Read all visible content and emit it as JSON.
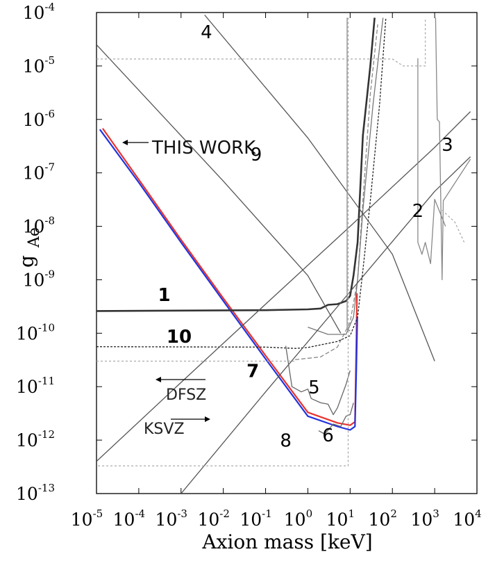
{
  "chart_data": {
    "type": "line",
    "xlabel": "Axion mass [keV]",
    "ylabel_main": "g",
    "ylabel_sub": "Ae",
    "x_scale": "log",
    "y_scale": "log",
    "xlim": [
      1e-05,
      10000.0
    ],
    "ylim": [
      1e-13,
      0.0001
    ],
    "x_ticks": [
      {
        "base": "10",
        "exp": "-5",
        "value": 1e-05
      },
      {
        "base": "10",
        "exp": "-4",
        "value": 0.0001
      },
      {
        "base": "10",
        "exp": "-3",
        "value": 0.001
      },
      {
        "base": "10",
        "exp": "-2",
        "value": 0.01
      },
      {
        "base": "10",
        "exp": "-1",
        "value": 0.1
      },
      {
        "base": "10",
        "exp": "0",
        "value": 1
      },
      {
        "base": "10",
        "exp": "1",
        "value": 10
      },
      {
        "base": "10",
        "exp": "2",
        "value": 100
      },
      {
        "base": "10",
        "exp": "3",
        "value": 1000
      },
      {
        "base": "10",
        "exp": "4",
        "value": 10000
      }
    ],
    "y_ticks": [
      {
        "base": "10",
        "exp": "-13",
        "value": 1e-13
      },
      {
        "base": "10",
        "exp": "-12",
        "value": 1e-12
      },
      {
        "base": "10",
        "exp": "-11",
        "value": 1e-11
      },
      {
        "base": "10",
        "exp": "-10",
        "value": 1e-10
      },
      {
        "base": "10",
        "exp": "-9",
        "value": 1e-09
      },
      {
        "base": "10",
        "exp": "-8",
        "value": 1e-08
      },
      {
        "base": "10",
        "exp": "-7",
        "value": 1e-07
      },
      {
        "base": "10",
        "exp": "-6",
        "value": 1e-06
      },
      {
        "base": "10",
        "exp": "-5",
        "value": 1e-05
      },
      {
        "base": "10",
        "exp": "-4",
        "value": 0.0001
      }
    ],
    "series": [
      {
        "color": "#e8332e",
        "width": 2.2,
        "dash": "",
        "points": [
          [
            1.4e-05,
            6.8e-07
          ],
          [
            0.0001,
            7.5e-08
          ],
          [
            0.001,
            5.6e-09
          ],
          [
            0.01,
            4.5e-10
          ],
          [
            0.1,
            3.8e-11
          ],
          [
            1,
            3.3e-12
          ],
          [
            5,
            2.1e-12
          ],
          [
            10,
            1.9e-12
          ],
          [
            13,
            2.2e-12
          ],
          [
            14,
            6e-11
          ],
          [
            14.5,
            5.6e-10
          ]
        ]
      },
      {
        "color": "#2233dd",
        "width": 2.2,
        "dash": "",
        "points": [
          [
            1.2e-05,
            6.5e-07
          ],
          [
            0.0001,
            6.6e-08
          ],
          [
            0.001,
            5e-09
          ],
          [
            0.01,
            4e-10
          ],
          [
            0.1,
            3.3e-11
          ],
          [
            1,
            2.8e-12
          ],
          [
            5,
            1.8e-12
          ],
          [
            10,
            1.55e-12
          ],
          [
            13,
            1.8e-12
          ],
          [
            14,
            2e-11
          ],
          [
            14.8,
            2e-10
          ]
        ]
      },
      {
        "color": "#333333",
        "width": 2.6,
        "dash": "",
        "points": [
          [
            1e-05,
            2.6e-10
          ],
          [
            0.1,
            2.7e-10
          ],
          [
            1,
            2.8e-10
          ],
          [
            2,
            2.9e-10
          ],
          [
            3,
            3.4e-10
          ],
          [
            5,
            3.5e-10
          ],
          [
            8,
            4e-10
          ],
          [
            10,
            5e-10
          ],
          [
            12,
            1.2e-09
          ],
          [
            15,
            5e-09
          ],
          [
            20,
            5e-07
          ],
          [
            30,
            1e-05
          ],
          [
            38,
            8e-05
          ]
        ]
      },
      {
        "color": "#222222",
        "width": 1.3,
        "dash": "3,2",
        "points": [
          [
            1e-05,
            5.6e-11
          ],
          [
            0.1,
            5.5e-11
          ],
          [
            0.5,
            5.2e-11
          ],
          [
            1,
            5.4e-11
          ],
          [
            5,
            7e-11
          ],
          [
            10,
            9e-11
          ],
          [
            15,
            2e-10
          ],
          [
            20,
            1.5e-09
          ],
          [
            30,
            3e-08
          ],
          [
            50,
            2e-06
          ],
          [
            70,
            8e-05
          ]
        ]
      },
      {
        "color": "#888888",
        "width": 1.3,
        "dash": "6,3",
        "points": [
          [
            0.5,
            3.2e-11
          ],
          [
            2,
            3.6e-11
          ],
          [
            5,
            5.5e-11
          ],
          [
            10,
            1.6e-10
          ],
          [
            15,
            1e-09
          ],
          [
            20,
            3e-08
          ],
          [
            30,
            3e-06
          ],
          [
            45,
            6e-05
          ]
        ]
      },
      {
        "color": "#777777",
        "width": 1.3,
        "dash": "",
        "points": [
          [
            1,
            1.3e-10
          ],
          [
            3,
            9.5e-11
          ],
          [
            8,
            9.5e-11
          ],
          [
            12,
            2e-10
          ],
          [
            15,
            1e-09
          ],
          [
            20,
            2e-08
          ],
          [
            35,
            2e-06
          ],
          [
            60,
            8e-05
          ]
        ]
      },
      {
        "color": "#555555",
        "width": 1.3,
        "dash": "",
        "points": [
          [
            1e-05,
            2.5e-05
          ],
          [
            0.01,
            7e-08
          ],
          [
            1,
            1.2e-09
          ],
          [
            6,
            1e-10
          ]
        ]
      },
      {
        "color": "#555555",
        "width": 1.3,
        "dash": "",
        "points": [
          [
            0.0036,
            9e-05
          ],
          [
            1,
            4.5e-07
          ],
          [
            100,
            3e-09
          ],
          [
            1000,
            3e-11
          ]
        ]
      },
      {
        "color": "#555555",
        "width": 1.3,
        "dash": "",
        "points": [
          [
            1e-05,
            4e-13
          ],
          [
            0.001,
            1.2e-11
          ],
          [
            0.1,
            3.5e-10
          ],
          [
            10,
            1e-08
          ],
          [
            1000,
            3e-07
          ],
          [
            7000,
            1.4e-06
          ]
        ]
      },
      {
        "color": "#555555",
        "width": 1.3,
        "dash": "",
        "points": [
          [
            0.001,
            1e-13
          ],
          [
            0.1,
            8e-12
          ],
          [
            10,
            6e-10
          ],
          [
            1000,
            4.5e-08
          ],
          [
            7000,
            2e-07
          ]
        ]
      },
      {
        "color": "#666666",
        "width": 1.3,
        "dash": "",
        "points": [
          [
            0.3,
            5.8e-11
          ],
          [
            0.42,
            1e-11
          ],
          [
            0.7,
            8e-12
          ],
          [
            1,
            9e-12
          ],
          [
            1.2,
            6e-12
          ],
          [
            2,
            5e-12
          ],
          [
            3,
            4.7e-12
          ],
          [
            4,
            3e-12
          ],
          [
            5,
            4e-12
          ],
          [
            8,
            1.1e-11
          ],
          [
            10,
            2e-11
          ]
        ]
      },
      {
        "color": "#666666",
        "width": 1.3,
        "dash": "",
        "points": [
          [
            1.8,
            1.5e-12
          ],
          [
            2.5,
            1.3e-12
          ],
          [
            4,
            2e-12
          ],
          [
            6,
            1.8e-12
          ],
          [
            8,
            2.8e-12
          ],
          [
            10,
            3e-12
          ],
          [
            12,
            5e-12
          ]
        ]
      },
      {
        "color": "#888888",
        "width": 1.3,
        "dash": "",
        "points": [
          [
            8.5,
            8e-05
          ],
          [
            8.5,
            1.2e-10
          ],
          [
            10,
            1.1e-10
          ]
        ]
      },
      {
        "color": "#888888",
        "width": 1.3,
        "dash": "",
        "points": [
          [
            1050,
            8e-05
          ],
          [
            1150,
            1e-06
          ],
          [
            1300,
            9e-07
          ],
          [
            1500,
            1e-09
          ],
          [
            1600,
            3e-08
          ],
          [
            7000,
            1.8e-07
          ]
        ]
      },
      {
        "color": "#888888",
        "width": 1.3,
        "dash": "",
        "points": [
          [
            400,
            1.4e-05
          ],
          [
            400,
            5e-09
          ],
          [
            500,
            3e-09
          ],
          [
            600,
            5e-09
          ],
          [
            800,
            2e-09
          ],
          [
            1000,
            3.2e-08
          ],
          [
            1800,
            1e-08
          ]
        ]
      },
      {
        "color": "#aaaaaa",
        "width": 1.3,
        "dash": "3,3",
        "points": [
          [
            1e-05,
            1.35e-05
          ],
          [
            100,
            1.35e-05
          ],
          [
            180,
            1e-05
          ],
          [
            600,
            1e-05
          ],
          [
            600,
            8e-05
          ]
        ]
      },
      {
        "color": "#aaaaaa",
        "width": 1.3,
        "dash": "3,3",
        "points": [
          [
            9,
            8e-05
          ],
          [
            9,
            3.3e-13
          ],
          [
            1e-05,
            3.3e-13
          ]
        ]
      },
      {
        "color": "#aaaaaa",
        "width": 1.3,
        "dash": "3,3",
        "points": [
          [
            1e-05,
            3e-11
          ],
          [
            0.5,
            3e-11
          ]
        ]
      },
      {
        "color": "#aaaaaa",
        "width": 1.3,
        "dash": "3,3",
        "points": [
          [
            1500,
            2e-08
          ],
          [
            3000,
            1.2e-08
          ],
          [
            5000,
            5e-09
          ]
        ]
      }
    ],
    "region_labels": [
      {
        "text": "1",
        "x": 0.0004,
        "y": 4e-10,
        "bold": true
      },
      {
        "text": "2",
        "x": 400,
        "y": 1.5e-08,
        "bold": false
      },
      {
        "text": "3",
        "x": 2000,
        "y": 2.6e-07,
        "bold": false
      },
      {
        "text": "4",
        "x": 0.004,
        "y": 3.3e-05,
        "bold": false
      },
      {
        "text": "5",
        "x": 1.4,
        "y": 7.5e-12,
        "bold": false
      },
      {
        "text": "6",
        "x": 3,
        "y": 9.5e-13,
        "bold": false
      },
      {
        "text": "7",
        "x": 0.05,
        "y": 1.5e-11,
        "bold": true
      },
      {
        "text": "8",
        "x": 0.3,
        "y": 7.5e-13,
        "bold": false
      },
      {
        "text": "9",
        "x": 0.06,
        "y": 1.7e-07,
        "bold": false
      },
      {
        "text": "10",
        "x": 0.0009,
        "y": 6.6e-11,
        "bold": true
      }
    ],
    "annotations": {
      "this_work": "THIS WORK",
      "dfsz": "DFSZ",
      "ksvz": "KSVZ"
    }
  }
}
